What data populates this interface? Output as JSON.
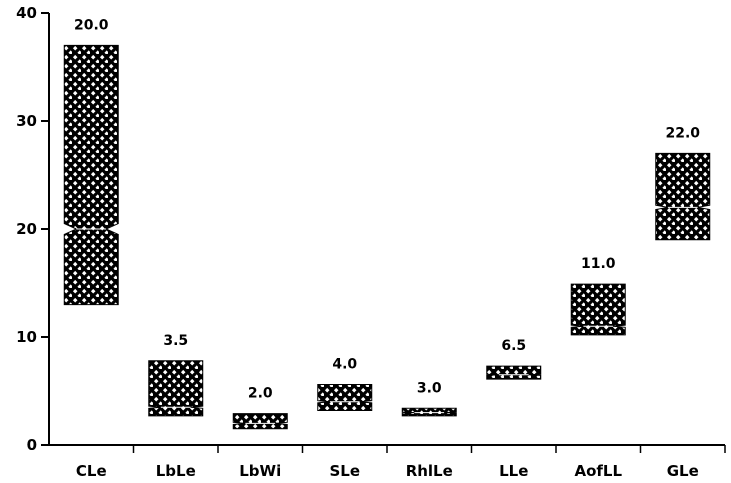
{
  "chart_data": {
    "type": "box",
    "title": "",
    "xlabel": "",
    "ylabel": "",
    "ylim": [
      0,
      40
    ],
    "yticks": [
      0,
      10,
      20,
      30,
      40
    ],
    "grid": false,
    "legend": "none",
    "pattern": "crosshatch",
    "categories": [
      "CLe",
      "LbLe",
      "LbWi",
      "SLe",
      "RhlLe",
      "LLe",
      "AofLL",
      "GLe"
    ],
    "boxes": [
      {
        "category": "CLe",
        "median": 20.0,
        "q1": 13.0,
        "q3": 37.0,
        "notch_low": 19.5,
        "notch_high": 20.5,
        "label": "20.0"
      },
      {
        "category": "LbLe",
        "median": 3.5,
        "q1": 2.7,
        "q3": 7.8,
        "notch_low": 3.4,
        "notch_high": 3.6,
        "label": "3.5"
      },
      {
        "category": "LbWi",
        "median": 2.0,
        "q1": 1.5,
        "q3": 2.9,
        "notch_low": 1.9,
        "notch_high": 2.1,
        "label": "2.0"
      },
      {
        "category": "SLe",
        "median": 4.0,
        "q1": 3.2,
        "q3": 5.6,
        "notch_low": 3.9,
        "notch_high": 4.1,
        "label": "4.0"
      },
      {
        "category": "RhlLe",
        "median": 3.0,
        "q1": 2.7,
        "q3": 3.4,
        "notch_low": 2.95,
        "notch_high": 3.05,
        "label": "3.0"
      },
      {
        "category": "LLe",
        "median": 6.5,
        "q1": 6.1,
        "q3": 7.3,
        "notch_low": 6.45,
        "notch_high": 6.55,
        "label": "6.5"
      },
      {
        "category": "AofLL",
        "median": 11.0,
        "q1": 10.2,
        "q3": 14.9,
        "notch_low": 10.9,
        "notch_high": 11.1,
        "label": "11.0"
      },
      {
        "category": "GLe",
        "median": 22.0,
        "q1": 19.0,
        "q3": 27.0,
        "notch_low": 21.8,
        "notch_high": 22.2,
        "label": "22.0"
      }
    ]
  }
}
